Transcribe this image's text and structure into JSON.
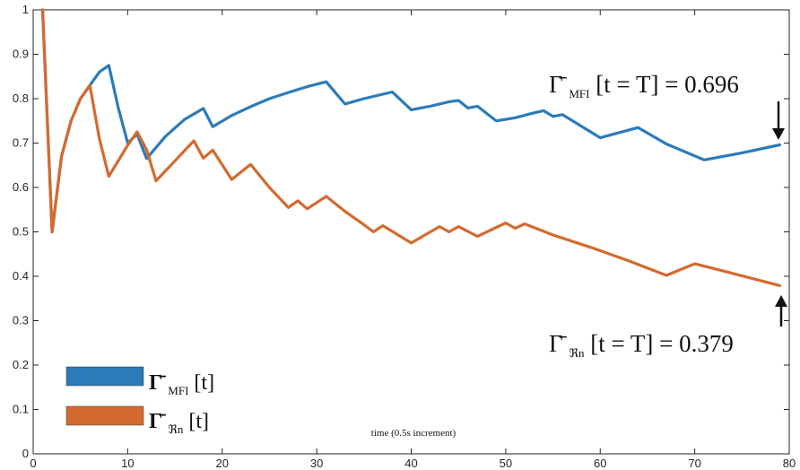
{
  "chart_data": {
    "type": "line",
    "title": "",
    "xlabel": "time (0.5s increment)",
    "ylabel": "",
    "xlim": [
      0,
      80
    ],
    "ylim": [
      0,
      1
    ],
    "xticks": [
      "0",
      "10",
      "20",
      "30",
      "40",
      "50",
      "60",
      "70",
      "80"
    ],
    "yticks": [
      "0",
      "0.1",
      "0.2",
      "0.3",
      "0.4",
      "0.5",
      "0.6",
      "0.7",
      "0.8",
      "0.9",
      "1"
    ],
    "grid": false,
    "legend_position": "bottom-left",
    "series": [
      {
        "name": "Γ̄_MFI[t]",
        "color": "#2b7bba",
        "points": [
          [
            1,
            1.0
          ],
          [
            2,
            0.5
          ],
          [
            3,
            0.67
          ],
          [
            4,
            0.75
          ],
          [
            5,
            0.8
          ],
          [
            6,
            0.83
          ],
          [
            7,
            0.86
          ],
          [
            8,
            0.875
          ],
          [
            9,
            0.78
          ],
          [
            10,
            0.7
          ],
          [
            11,
            0.72
          ],
          [
            12,
            0.665
          ],
          [
            14,
            0.715
          ],
          [
            16,
            0.753
          ],
          [
            18,
            0.778
          ],
          [
            19,
            0.737
          ],
          [
            21,
            0.762
          ],
          [
            23,
            0.782
          ],
          [
            25,
            0.8
          ],
          [
            27,
            0.814
          ],
          [
            29,
            0.827
          ],
          [
            31,
            0.838
          ],
          [
            33,
            0.788
          ],
          [
            35,
            0.8
          ],
          [
            37,
            0.81
          ],
          [
            38,
            0.815
          ],
          [
            40,
            0.775
          ],
          [
            42,
            0.783
          ],
          [
            44,
            0.793
          ],
          [
            45,
            0.796
          ],
          [
            46,
            0.779
          ],
          [
            47,
            0.783
          ],
          [
            49,
            0.75
          ],
          [
            51,
            0.757
          ],
          [
            53,
            0.768
          ],
          [
            54,
            0.773
          ],
          [
            55,
            0.76
          ],
          [
            56,
            0.764
          ],
          [
            60,
            0.712
          ],
          [
            64,
            0.735
          ],
          [
            67,
            0.698
          ],
          [
            71,
            0.662
          ],
          [
            75,
            0.678
          ],
          [
            79,
            0.696
          ]
        ]
      },
      {
        "name": "Γ̄_ℜn[t]",
        "color": "#d46a2f",
        "points": [
          [
            1,
            1.0
          ],
          [
            2,
            0.5
          ],
          [
            3,
            0.67
          ],
          [
            4,
            0.75
          ],
          [
            5,
            0.8
          ],
          [
            6,
            0.83
          ],
          [
            7,
            0.71
          ],
          [
            8,
            0.625
          ],
          [
            10,
            0.695
          ],
          [
            11,
            0.725
          ],
          [
            12,
            0.685
          ],
          [
            13,
            0.615
          ],
          [
            15,
            0.66
          ],
          [
            17,
            0.705
          ],
          [
            18,
            0.666
          ],
          [
            19,
            0.684
          ],
          [
            21,
            0.618
          ],
          [
            23,
            0.652
          ],
          [
            25,
            0.6
          ],
          [
            27,
            0.555
          ],
          [
            28,
            0.57
          ],
          [
            29,
            0.552
          ],
          [
            31,
            0.58
          ],
          [
            33,
            0.546
          ],
          [
            35,
            0.516
          ],
          [
            36,
            0.5
          ],
          [
            37,
            0.514
          ],
          [
            40,
            0.475
          ],
          [
            43,
            0.512
          ],
          [
            44,
            0.5
          ],
          [
            45,
            0.512
          ],
          [
            47,
            0.49
          ],
          [
            50,
            0.52
          ],
          [
            51,
            0.508
          ],
          [
            52,
            0.518
          ],
          [
            55,
            0.493
          ],
          [
            59,
            0.465
          ],
          [
            63,
            0.435
          ],
          [
            67,
            0.402
          ],
          [
            70,
            0.428
          ],
          [
            73,
            0.412
          ],
          [
            79,
            0.379
          ]
        ]
      }
    ],
    "annotations": [
      {
        "series": 0,
        "label_left": "Γ̄",
        "label_sub": "MFI",
        "label_right": "[t = T] = 0.696",
        "x": 79,
        "y": 0.696
      },
      {
        "series": 1,
        "label_left": "Γ̄",
        "label_sub": "ℜn",
        "label_right": "[t = T] = 0.379",
        "x": 79,
        "y": 0.379
      }
    ],
    "legend": [
      {
        "symbol": "Γ̄",
        "sub": "MFI",
        "suffix": "[t]"
      },
      {
        "symbol": "Γ̄",
        "sub": "ℜn",
        "suffix": "[t]"
      }
    ]
  }
}
